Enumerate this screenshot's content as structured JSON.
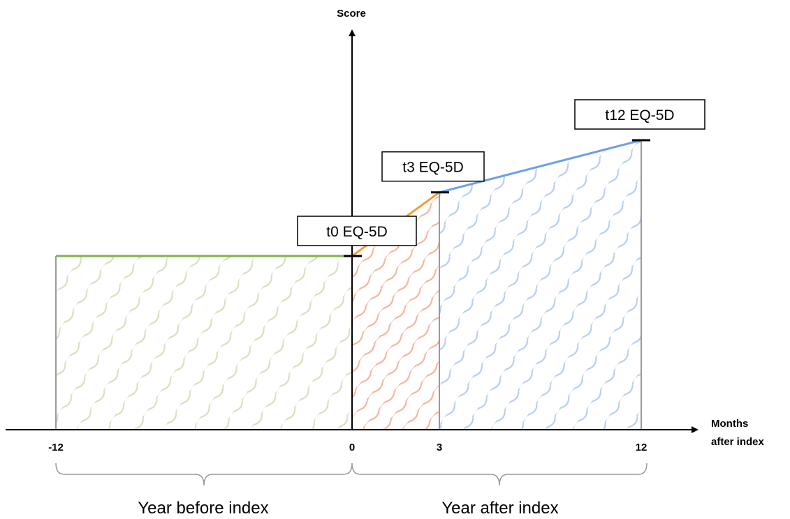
{
  "colors": {
    "before": "#7ab648",
    "before_hatch": "#d3e2bd",
    "early_after": "#f39c39",
    "early_after_hatch": "#f5b49a",
    "late_after": "#6d9eeb",
    "late_after_hatch": "#b8cdf2",
    "gridline": "#999999",
    "axis": "#000000"
  },
  "axes": {
    "y_label": "Score",
    "x_label_line1": "Months",
    "x_label_line2": "after index"
  },
  "ticks": [
    {
      "label": "-12",
      "month": -12
    },
    {
      "label": "0",
      "month": 0
    },
    {
      "label": "3",
      "month": 3
    },
    {
      "label": "12",
      "month": 12
    }
  ],
  "measurements": [
    {
      "label": "t0 EQ-5D",
      "month": 0,
      "score": 0.6
    },
    {
      "label": "t3 EQ-5D",
      "month": 3,
      "score": 0.82
    },
    {
      "label": "t12 EQ-5D",
      "month": 12,
      "score": 1.0
    }
  ],
  "braces": {
    "before": "Year before index",
    "after": "Year after index"
  }
}
